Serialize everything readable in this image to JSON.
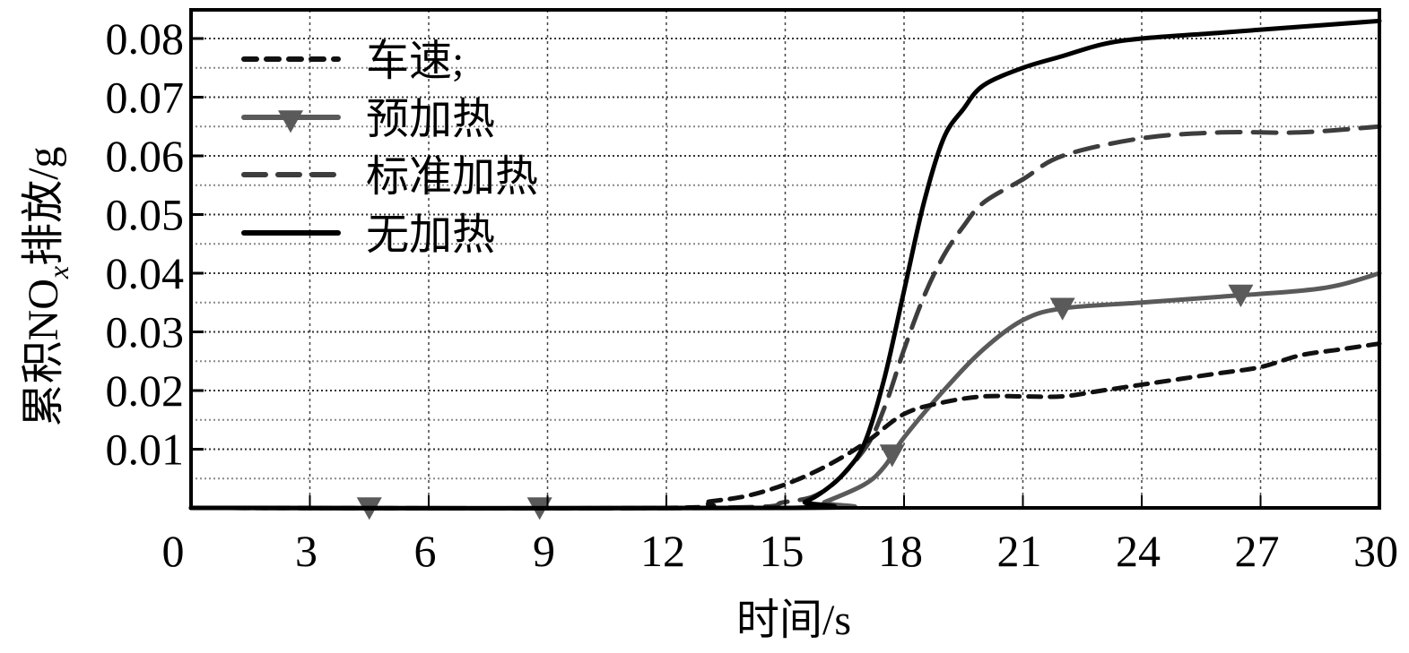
{
  "chart_data": {
    "type": "line",
    "title": "",
    "xlabel": "时间/s",
    "ylabel": "累积NOx排放/g",
    "ylabel_parts": {
      "prefix": "累积NO",
      "subscript": "x",
      "suffix": "排放/g"
    },
    "xlim": [
      0,
      30
    ],
    "ylim": [
      0,
      0.085
    ],
    "x_ticks": [
      0,
      3,
      6,
      9,
      12,
      15,
      18,
      21,
      24,
      27,
      30
    ],
    "x_tick_labels": [
      "0",
      "3",
      "6",
      "9",
      "12",
      "15",
      "18",
      "21",
      "24",
      "27",
      "30"
    ],
    "y_ticks": [
      0.01,
      0.02,
      0.03,
      0.04,
      0.05,
      0.06,
      0.07,
      0.08
    ],
    "y_tick_labels": [
      "0.01",
      "0.02",
      "0.03",
      "0.04",
      "0.05",
      "0.06",
      "0.07",
      "0.08"
    ],
    "grid": true,
    "legend_position": "upper left",
    "series": [
      {
        "name": "车速;",
        "style": "short-dash",
        "color": "#111111",
        "x": [
          0,
          12,
          13,
          14,
          15,
          16,
          17,
          18,
          19,
          20,
          21,
          22,
          23,
          24,
          25,
          26,
          27,
          28,
          29,
          30
        ],
        "values": [
          0,
          0,
          0.001,
          0.002,
          0.004,
          0.007,
          0.011,
          0.016,
          0.018,
          0.019,
          0.019,
          0.019,
          0.02,
          0.021,
          0.022,
          0.023,
          0.024,
          0.026,
          0.027,
          0.028
        ]
      },
      {
        "name": "预加热",
        "style": "solid-triangle-markers",
        "color": "#5a5a5a",
        "x": [
          0,
          15.5,
          16,
          17,
          17.5,
          18,
          19,
          20,
          21,
          22,
          24,
          26,
          28,
          29,
          30
        ],
        "values": [
          0,
          0,
          0.001,
          0.004,
          0.007,
          0.012,
          0.02,
          0.027,
          0.032,
          0.034,
          0.035,
          0.036,
          0.037,
          0.038,
          0.04
        ],
        "markers_x": [
          4.5,
          8.8,
          17.7,
          22.0,
          26.5
        ]
      },
      {
        "name": "标准加热",
        "style": "long-dash",
        "color": "#3d3d3d",
        "x": [
          0,
          13,
          15,
          16,
          17,
          17.5,
          18,
          18.5,
          19,
          19.5,
          20,
          21,
          22,
          24,
          26,
          28,
          30
        ],
        "values": [
          0,
          0,
          0.001,
          0.003,
          0.01,
          0.017,
          0.027,
          0.036,
          0.043,
          0.048,
          0.052,
          0.056,
          0.06,
          0.063,
          0.064,
          0.064,
          0.065
        ]
      },
      {
        "name": "无加热",
        "style": "solid",
        "color": "#000000",
        "x": [
          0,
          15,
          15.5,
          16,
          16.5,
          17,
          17.5,
          18,
          18.5,
          19,
          19.5,
          20,
          21,
          22,
          23,
          24,
          26,
          28,
          30
        ],
        "values": [
          0,
          0,
          0.001,
          0.003,
          0.006,
          0.011,
          0.022,
          0.037,
          0.052,
          0.063,
          0.068,
          0.072,
          0.075,
          0.077,
          0.079,
          0.08,
          0.081,
          0.082,
          0.083
        ]
      }
    ]
  }
}
